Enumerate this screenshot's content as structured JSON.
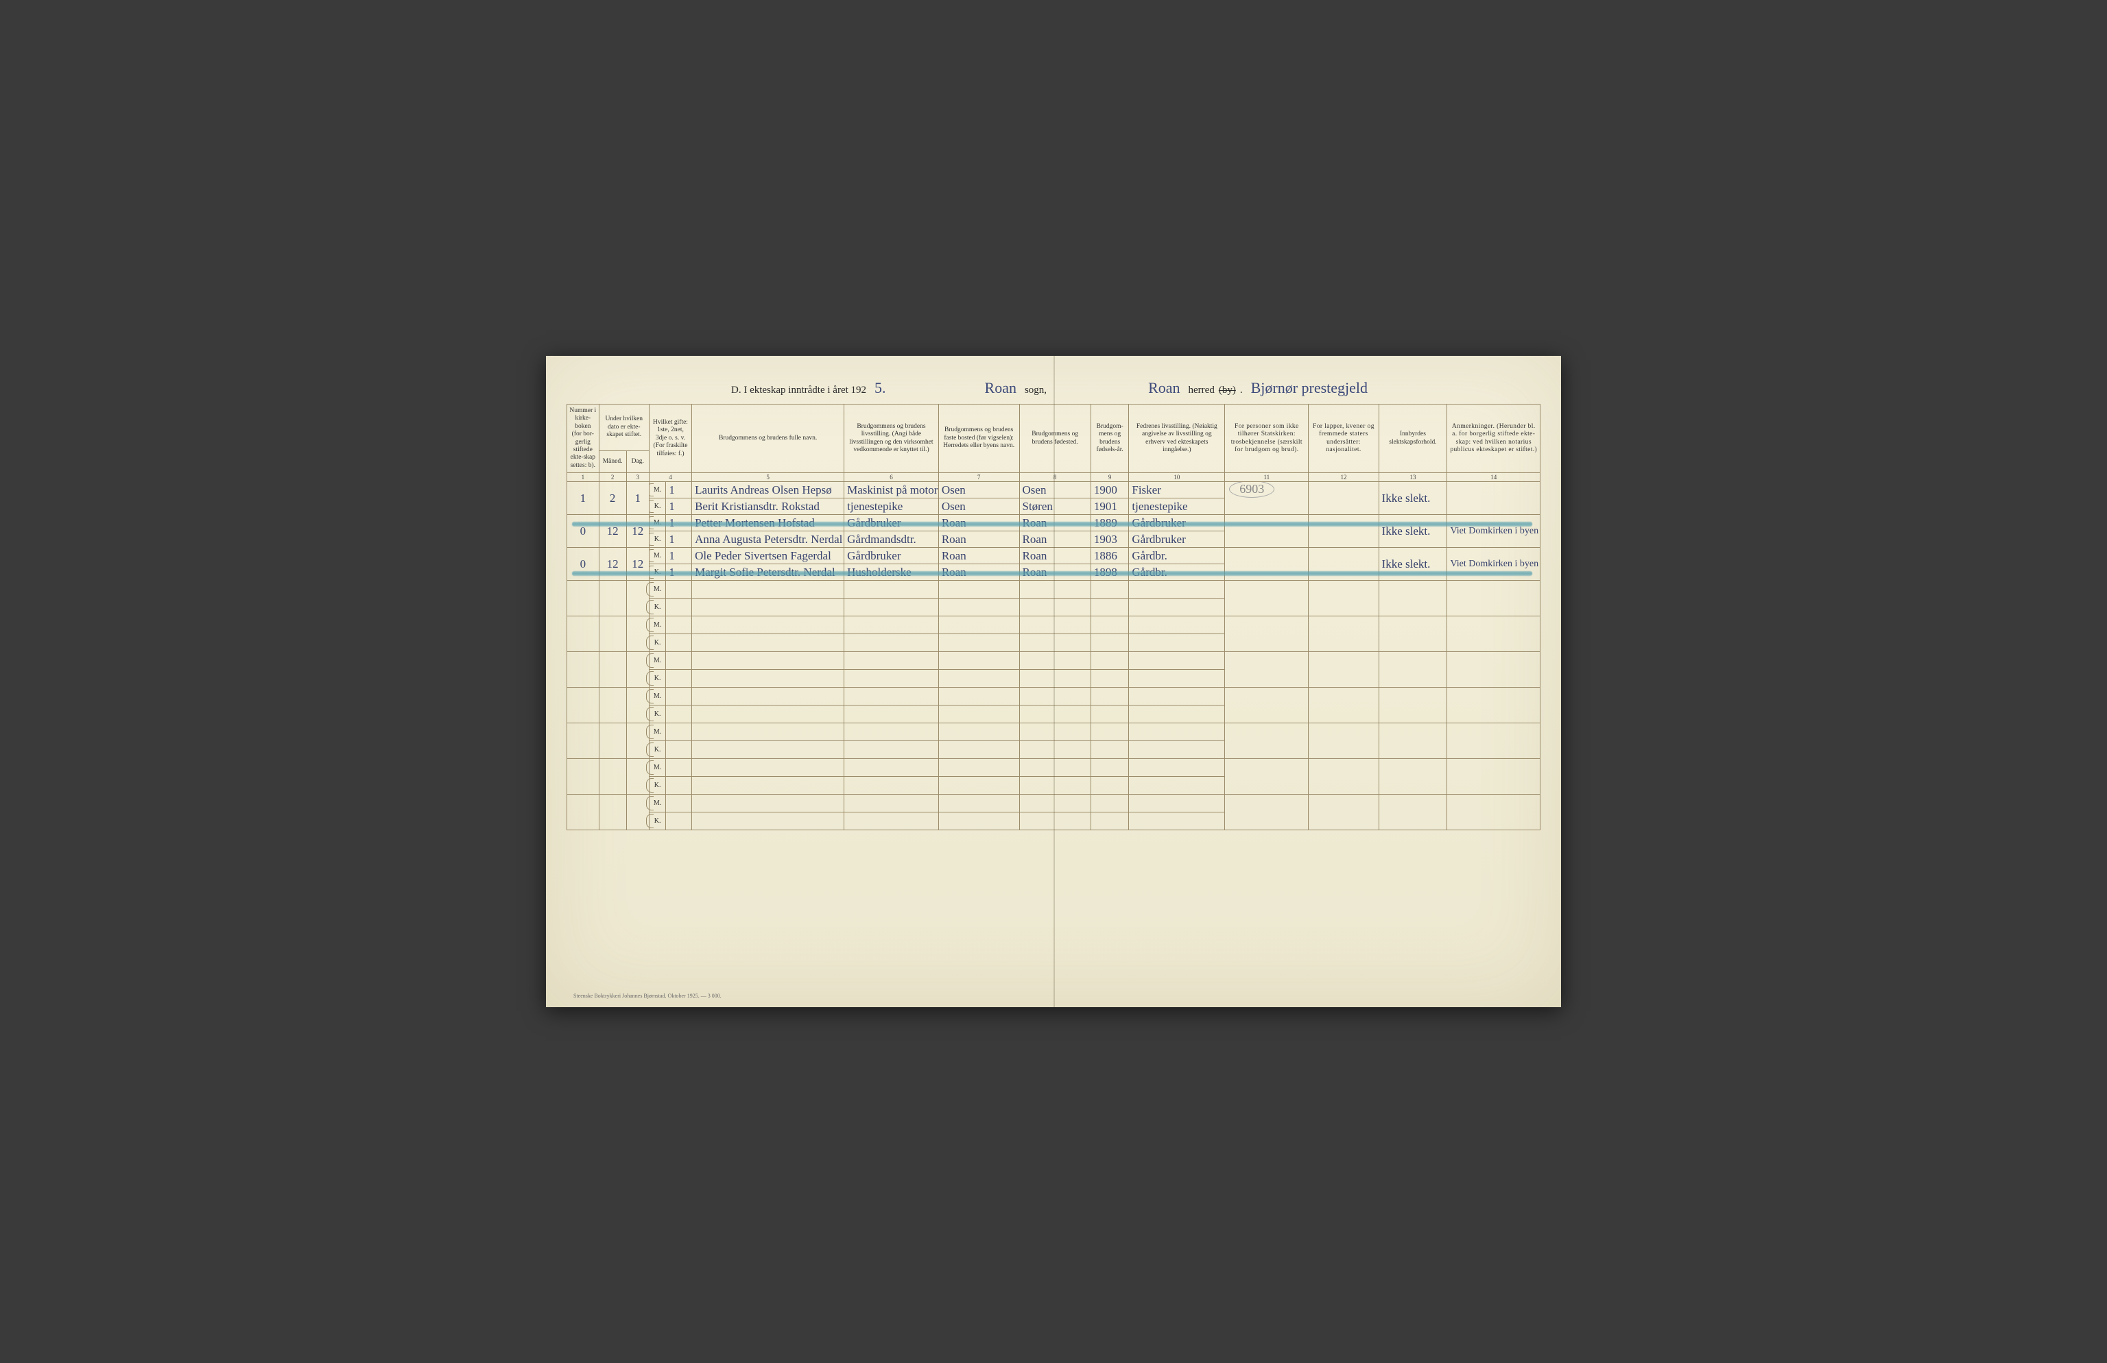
{
  "title": {
    "prefix": "D.  I ekteskap inntrådte i året 192",
    "year_suffix": "5.",
    "sogn_hand": "Roan",
    "sogn_label": "sogn,",
    "herred_hand": "Roan",
    "herred_label_pre": "herred ",
    "herred_label_strike": "(by)",
    "herred_label_post": ".",
    "prestegjeld_hand": "Bjørnør prestegjeld"
  },
  "headers": {
    "c1": "Nummer i kirke-boken (for bor-gerlig stiftede ekte-skap settes: b).",
    "c2_top": "Under hvilken dato er ekte-skapet stiftet.",
    "c2_m": "Måned.",
    "c2_d": "Dag.",
    "c4": "Hvilket gifte: 1ste, 2net, 3dje o. s. v. (For fraskilte tilføies: f.)",
    "c5": "Brudgommens og brudens fulle navn.",
    "c6": "Brudgommens og brudens livsstilling. (Angi både livsstillingen og den virksomhet vedkommende er knyttet til.)",
    "c7": "Brudgommens og brudens faste bosted (før vigselen): Herredets eller byens navn.",
    "c8": "Brudgommens og brudens fødested.",
    "c9": "Brudgom-mens og brudens fødsels-år.",
    "c10": "Fedrenes livsstilling. (Nøiaktig angivelse av livsstilling og erhverv ved ekteskapets inngåelse.)",
    "c11": "For personer som ikke tilhører Statskirken: trosbekjennelse (særskilt for brudgom og brud).",
    "c12": "For lapper, kvener og fremmede staters undersåtter: nasjonalitet.",
    "c13": "Innbyrdes slektskapsforhold.",
    "c14": "Anmerkninger. (Herunder bl. a. for borgerlig stiftede ekte-skap: ved hvilken notarius publicus ekteskapet er stiftet.)"
  },
  "colnums": [
    "1",
    "2",
    "3",
    "4",
    "5",
    "6",
    "7",
    "8",
    "9",
    "10",
    "11",
    "12",
    "13",
    "14"
  ],
  "mk": {
    "m": "M.",
    "k": "K."
  },
  "rows": [
    {
      "num": "1",
      "maaned": "2",
      "dag": "1",
      "m": {
        "gifte": "1",
        "navn": "Laurits Andreas Olsen Hepsø",
        "stilling": "Maskinist på motorbåt",
        "bosted": "Osen",
        "fodested": "Osen",
        "aar": "1900",
        "fedre": "Fisker"
      },
      "k": {
        "gifte": "1",
        "navn": "Berit Kristiansdtr. Rokstad",
        "stilling": "tjenestepike",
        "bosted": "Osen",
        "fodested": "Støren",
        "aar": "1901",
        "fedre": "tjenestepike"
      },
      "pencil": "6903",
      "c13": "Ikke slekt.",
      "c14": ""
    },
    {
      "num": "0",
      "maaned": "12",
      "dag": "12",
      "m": {
        "gifte": "1",
        "navn": "Petter Mortensen Hofstad",
        "stilling": "Gårdbruker",
        "bosted": "Roan",
        "fodested": "Roan",
        "aar": "1889",
        "fedre": "Gårdbruker"
      },
      "k": {
        "gifte": "1",
        "navn": "Anna Augusta Petersdtr. Nerdal",
        "stilling": "Gårdmandsdtr.",
        "bosted": "Roan",
        "fodested": "Roan",
        "aar": "1903",
        "fedre": "Gårdbruker"
      },
      "c13": "Ikke slekt.",
      "c14": "Viet Domkirken i byen",
      "crayon": true,
      "crayon_on": "m"
    },
    {
      "num": "0",
      "maaned": "12",
      "dag": "12",
      "m": {
        "gifte": "1",
        "navn": "Ole Peder Sivertsen Fagerdal",
        "stilling": "Gårdbruker",
        "bosted": "Roan",
        "fodested": "Roan",
        "aar": "1886",
        "fedre": "Gårdbr."
      },
      "k": {
        "gifte": "1",
        "navn": "Margit Sofie Petersdtr. Nerdal",
        "stilling": "Husholderske",
        "bosted": "Roan",
        "fodested": "Roan",
        "aar": "1898",
        "fedre": "Gårdbr."
      },
      "c13": "Ikke slekt.",
      "c14": "Viet Domkirken i byen",
      "crayon": true,
      "crayon_on": "k"
    }
  ],
  "blank_pairs": 7,
  "footer": "Steenske Boktrykkeri Johannes Bjørnstad.  Oktober 1925. — 3 000.",
  "style": {
    "page_bg_top": "#f4f0dc",
    "page_bg_bottom": "#ede8d0",
    "rule_color": "#9a8b6a",
    "ink_hand": "#38426e",
    "crayon_color": "rgba(88,160,175,.7)"
  }
}
